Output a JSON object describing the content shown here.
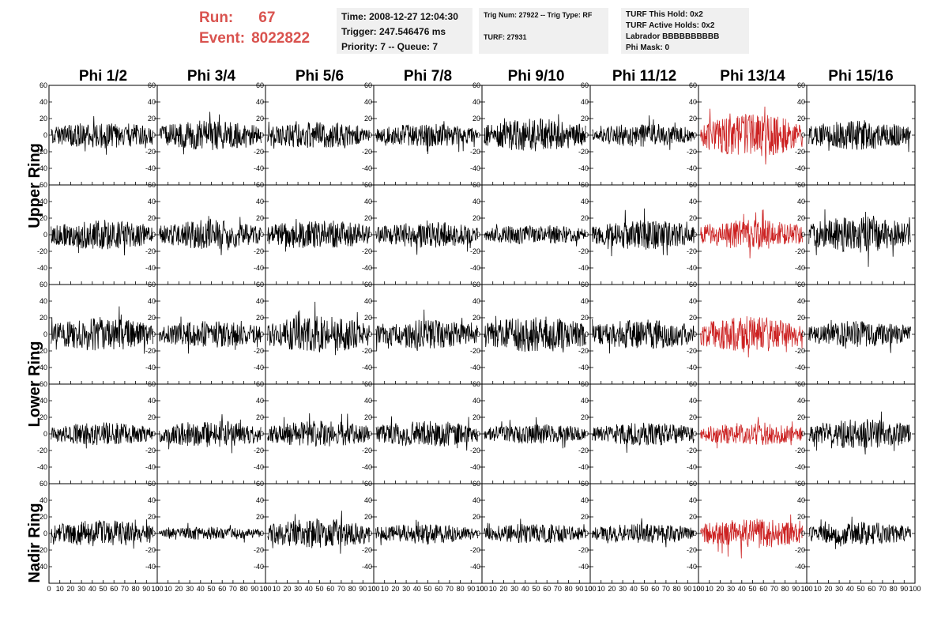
{
  "header": {
    "run_label": "Run:",
    "run_value": "67",
    "event_label": "Event:",
    "event_value": "8022822",
    "time": "Time: 2008-12-27 12:04:30",
    "trigger": "Trigger: 247.546476 ms",
    "priority": "Priority: 7 -- Queue: 7",
    "trig_num": "Trig Num: 27922 -- Trig Type: RF",
    "turf": "TURF: 27931",
    "turf_this_hold": "TURF This Hold: 0x2",
    "turf_active_holds": "TURF Active Holds: 0x2",
    "labrador": "Labrador BBBBBBBBBB",
    "phi_mask": "Phi Mask: 0"
  },
  "columns": [
    "Phi 1/2",
    "Phi 3/4",
    "Phi 5/6",
    "Phi 7/8",
    "Phi 9/10",
    "Phi 11/12",
    "Phi 13/14",
    "Phi 15/16"
  ],
  "row_groups": [
    "Upper Ring",
    "Lower Ring",
    "Nadir Ring"
  ],
  "chart_data": {
    "type": "line",
    "grid_rows": 5,
    "grid_cols": 8,
    "xlim": [
      0,
      100
    ],
    "ylim": [
      -60,
      60
    ],
    "y_ticks": [
      -40,
      -20,
      0,
      20,
      40,
      60
    ],
    "x_ticks": [
      0,
      10,
      20,
      30,
      40,
      50,
      60,
      70,
      80,
      90,
      100
    ],
    "highlight_column": 6,
    "colors": {
      "normal": "#000000",
      "highlight": "#cc2222"
    },
    "amplitude_estimates": [
      [
        16,
        18,
        16,
        14,
        20,
        14,
        26,
        18
      ],
      [
        18,
        18,
        18,
        16,
        12,
        18,
        18,
        22
      ],
      [
        20,
        16,
        22,
        18,
        22,
        18,
        22,
        16
      ],
      [
        14,
        16,
        16,
        16,
        12,
        14,
        14,
        18
      ],
      [
        16,
        8,
        18,
        12,
        12,
        12,
        18,
        14
      ]
    ]
  }
}
